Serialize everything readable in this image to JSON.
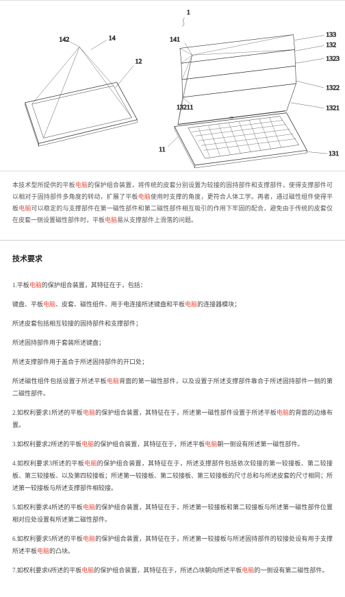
{
  "figure": {
    "top_label": "1",
    "refs": {
      "r142": "142",
      "r14": "14",
      "r12": "12",
      "r141": "141",
      "r13211": "13211",
      "r11": "11",
      "r133": "133",
      "r132": "132",
      "r1323": "1323",
      "r1322": "1322",
      "r1321": "1321",
      "r131": "131"
    },
    "stroke_color": "#333",
    "stroke_width": 0.8,
    "thin_stroke": 0.5
  },
  "description": {
    "text_parts": [
      "本技术型所提供的平板",
      "的保护组合装置，将传统的皮套分别设置为较接的固持部件和支撑部件，使得支撑部件可以相对于固持部件多角度的转动，扩展了平板",
      "使用时支撑的角度，更符合人体工学。再者，通过磁性组件使得平板",
      "可以稳定的与支撑部件在第一磁性部件和第二磁性部件相互吸引的作用下牢固的配合，避免由于传统的皮套仅在皮套一侧设置磁性部件时，平板",
      "易从支撑部件上滑落的问题。"
    ],
    "hl_word": "电脑"
  },
  "section_title": "技术要求",
  "claims": {
    "hl_word": "电脑",
    "items": [
      {
        "num": "1.",
        "parts": [
          "平板",
          "的保护组合装置，其特征在于，包括："
        ]
      },
      {
        "num": "",
        "parts": [
          "键盘、平板",
          "、皮套、磁性组件、用于电连接所述键盘和平板",
          "的连接器模块；"
        ]
      },
      {
        "num": "",
        "parts": [
          "所述皮套包括相互较接的固持部件和支撑部件；"
        ]
      },
      {
        "num": "",
        "parts": [
          "所述固持部件用于套装所述键盘；"
        ]
      },
      {
        "num": "",
        "parts": [
          "所述支撑部件用于盖合于所述固持部件的开口处；"
        ]
      },
      {
        "num": "",
        "parts": [
          "所述磁性组件包括设置于所述平板",
          "背面的第一磁性部件，以及设置于所述支撑部件靠合于所述固持部件一侧的第二磁性部件。"
        ]
      },
      {
        "num": "2.",
        "parts": [
          "如权利要求1所述的平板",
          "的保护组合装置，其特征在于，所述第一磁性部件设置于所述平板",
          "的背面的边缘布置。"
        ]
      },
      {
        "num": "3.",
        "parts": [
          "如权利要求2所述的平板",
          "的保护组合装置，其特征在于，所述平板",
          "朝一侧设有所述第一磁性部件。"
        ]
      },
      {
        "num": "4.",
        "parts": [
          "如权利要求3所述的平板",
          "的保护组合装置，其特征在于，所述支撑部件包括依次较接的第一较接板、第二较接板、第三较接板、以及第四较接板；所述第一较接板、第二较接板、第三较接板的尺寸总和与所述皮套的尺寸相同；所述第一较接板与所述支撑部件相较接。"
        ]
      },
      {
        "num": "5.",
        "parts": [
          "如权利要求4所述的平板",
          "的保护组合装置，其特征在于，所述第一较接板和第二较接板与所述第一磁性部件位置相对应处设置有所述第二磁性部件。"
        ]
      },
      {
        "num": "6.",
        "parts": [
          "如权利要求5所述的平板",
          "的保护组合装置，其特征在于，所述第一较接板与所述固持部件的较接处设有用于支撑所述平板",
          "的凸块。"
        ]
      },
      {
        "num": "7.",
        "parts": [
          "如权利要求6所述的平板",
          "的保护组合装置，其特征在于，所述凸块朝向所述平板",
          "的一侧设有第二磁性部件。"
        ]
      }
    ]
  }
}
